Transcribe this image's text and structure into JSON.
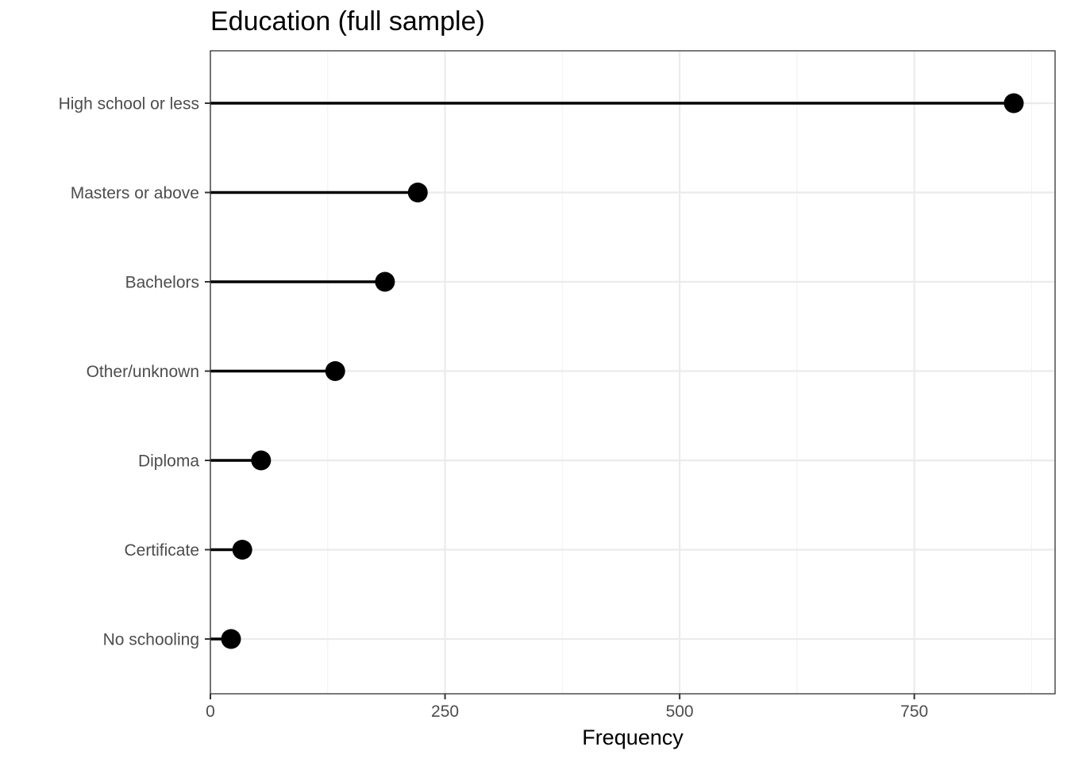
{
  "chart_data": {
    "type": "lollipop",
    "title": "Education (full sample)",
    "xlabel": "Frequency",
    "ylabel": "",
    "categories": [
      "High school or less",
      "Masters or above",
      "Bachelors",
      "Other/unknown",
      "Diploma",
      "Certificate",
      "No schooling"
    ],
    "values": [
      856,
      221,
      186,
      133,
      54,
      34,
      22
    ],
    "xlim": [
      0,
      900
    ],
    "x_ticks": [
      0,
      250,
      500,
      750
    ],
    "x_tick_labels": [
      "0",
      "250",
      "500",
      "750"
    ],
    "grid": true,
    "colors": {
      "marks": "#000000",
      "grid_major": "#ebebeb",
      "grid_minor": "#f2f2f2",
      "panel_border": "#333333",
      "tick_text": "#4d4d4d"
    }
  }
}
